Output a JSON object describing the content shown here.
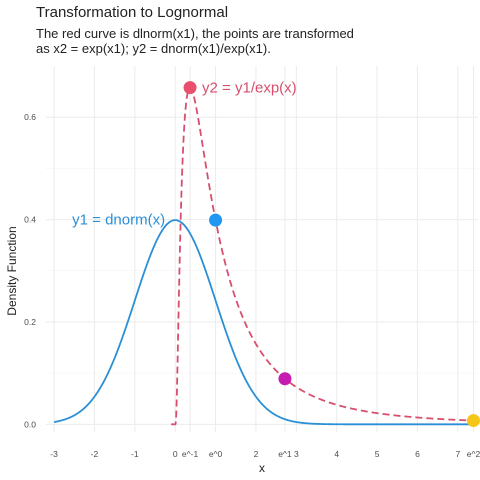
{
  "chart_data": {
    "type": "line",
    "title": "Transformation to Lognormal",
    "subtitle_line1": "The red curve is dlnorm(x1), the points are transformed",
    "subtitle_line2": "as x2 = exp(x1); y2 = dnorm(x1)/exp(x1).",
    "xlabel": "x",
    "ylabel": "Density Function",
    "xlim": [
      -3.2,
      7.5
    ],
    "ylim": [
      -0.015,
      0.7
    ],
    "grid": true,
    "x_ticks": [
      {
        "value": -3,
        "label": "-3"
      },
      {
        "value": -2,
        "label": "-2"
      },
      {
        "value": -1,
        "label": "-1"
      },
      {
        "value": 0,
        "label": "0"
      },
      {
        "value": 0.3679,
        "label": "e^-1"
      },
      {
        "value": 1,
        "label": "e^0"
      },
      {
        "value": 2,
        "label": "2"
      },
      {
        "value": 2.7183,
        "label": "e^1"
      },
      {
        "value": 3,
        "label": "3"
      },
      {
        "value": 4,
        "label": "4"
      },
      {
        "value": 5,
        "label": "5"
      },
      {
        "value": 6,
        "label": "6"
      },
      {
        "value": 7,
        "label": "7"
      },
      {
        "value": 7.389,
        "label": "e^2"
      }
    ],
    "y_ticks": [
      {
        "value": 0.0,
        "label": "0.0"
      },
      {
        "value": 0.2,
        "label": "0.2"
      },
      {
        "value": 0.4,
        "label": "0.4"
      },
      {
        "value": 0.6,
        "label": "0.6"
      }
    ],
    "series": [
      {
        "name": "y1 = dnorm(x)",
        "color": "#2b8fd6",
        "style": "solid",
        "function": "dnorm",
        "domain": [
          -3,
          7.4
        ]
      },
      {
        "name": "y2 = y1/exp(x)",
        "color": "#d6506e",
        "style": "dashed",
        "function": "dlnorm",
        "domain": [
          -0.1,
          7.4
        ]
      }
    ],
    "points": [
      {
        "x": 0.3679,
        "y": 0.6577,
        "color": "#e8506e"
      },
      {
        "x": 1.0,
        "y": 0.3989,
        "color": "#2196f3"
      },
      {
        "x": 2.7183,
        "y": 0.089,
        "color": "#c51bb0"
      },
      {
        "x": 7.389,
        "y": 0.0073,
        "color": "#f5c518"
      }
    ]
  }
}
